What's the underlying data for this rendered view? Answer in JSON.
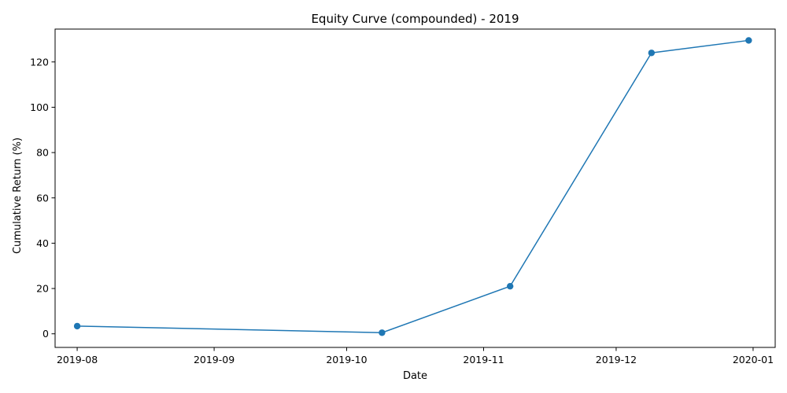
{
  "chart_data": {
    "type": "line",
    "title": "Equity Curve (compounded) - 2019",
    "xlabel": "Date",
    "ylabel": "Cumulative Return (%)",
    "x_ticks": [
      "2019-08",
      "2019-09",
      "2019-10",
      "2019-11",
      "2019-12",
      "2020-01"
    ],
    "y_ticks": [
      0,
      20,
      40,
      60,
      80,
      100,
      120
    ],
    "xlim": [
      "2019-07-27",
      "2020-01-06"
    ],
    "ylim": [
      -6,
      134.5
    ],
    "grid": false,
    "series": [
      {
        "color": "#1f77b4",
        "marker": "circle",
        "points": [
          {
            "x": "2019-08-01",
            "y": 3.4
          },
          {
            "x": "2019-10-09",
            "y": 0.5
          },
          {
            "x": "2019-11-07",
            "y": 21.0
          },
          {
            "x": "2019-12-09",
            "y": 124.0
          },
          {
            "x": "2019-12-31",
            "y": 129.5
          }
        ]
      }
    ]
  }
}
